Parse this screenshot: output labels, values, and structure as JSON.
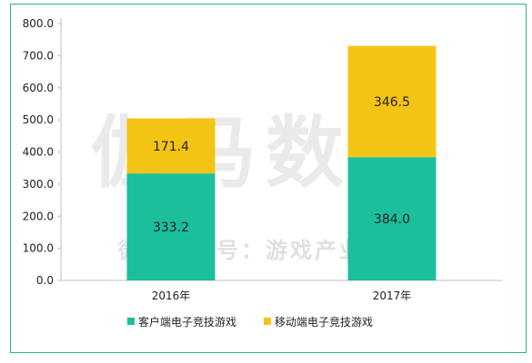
{
  "watermark": {
    "brand": "伽马数据",
    "subtitle": "微信公众号：游戏产业报告"
  },
  "chart_data": {
    "type": "bar",
    "stacked": true,
    "categories": [
      "2016年",
      "2017年"
    ],
    "series": [
      {
        "name": "客户端电子竞技游戏",
        "values": [
          333.2,
          384.0
        ],
        "labels": [
          "333.2",
          "384.0"
        ],
        "color": "#1bbf9b"
      },
      {
        "name": "移动端电子竞技游戏",
        "values": [
          171.4,
          346.5
        ],
        "labels": [
          "171.4",
          "346.5"
        ],
        "color": "#f4c414"
      }
    ],
    "ylim": [
      0,
      800
    ],
    "yticks": [
      "0.0",
      "100.0",
      "200.0",
      "300.0",
      "400.0",
      "500.0",
      "600.0",
      "700.0",
      "800.0"
    ],
    "grid": false,
    "legend_position": "bottom"
  }
}
